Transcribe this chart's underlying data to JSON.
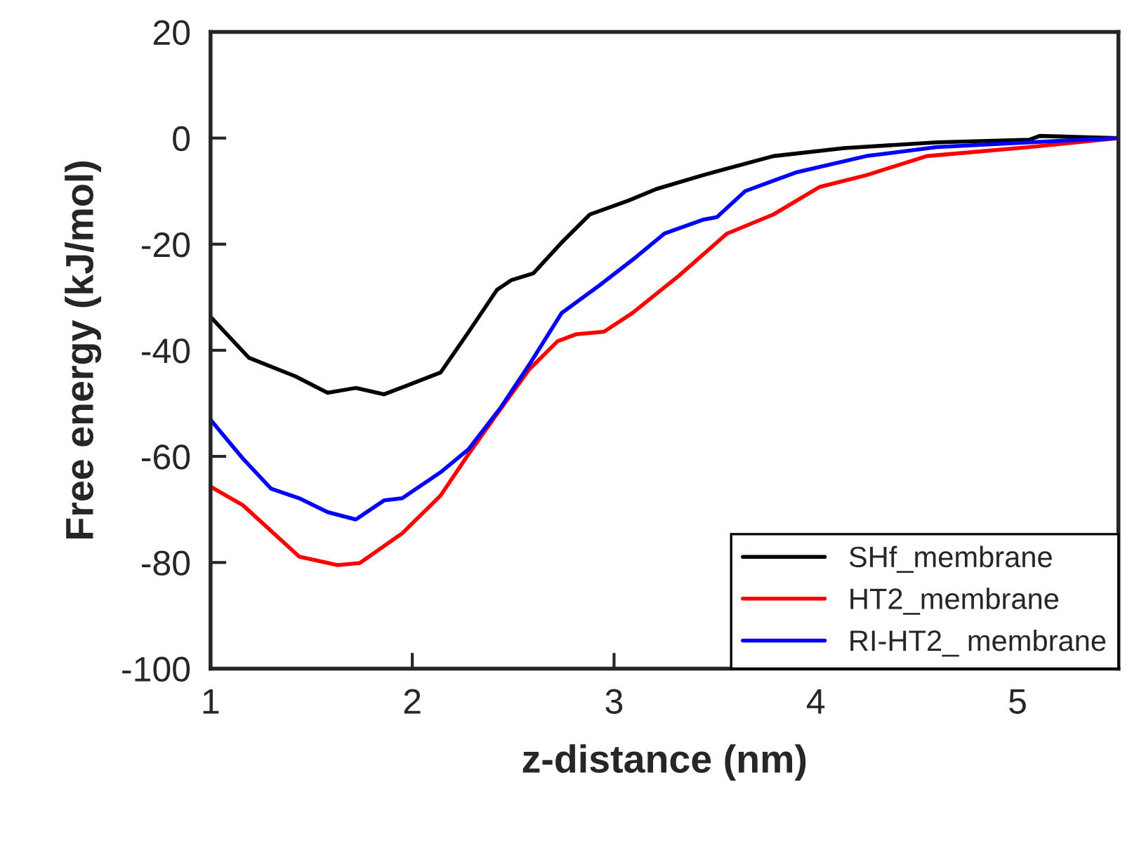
{
  "chart_data": {
    "type": "line",
    "xlabel": "z-distance (nm)",
    "ylabel": "Free energy (kJ/mol)",
    "xlim": [
      1,
      5.5
    ],
    "xticks": [
      1,
      2,
      3,
      4,
      5
    ],
    "ylim": [
      -100,
      20
    ],
    "yticks": [
      -100,
      -80,
      -60,
      -40,
      -20,
      0,
      20
    ],
    "grid": false,
    "legend": "bottom right",
    "marker": "none",
    "line_style": "solid",
    "series": [
      {
        "name": "SHf_membrane",
        "color": "#000000",
        "x": [
          1.0,
          1.19,
          1.42,
          1.58,
          1.72,
          1.86,
          1.97,
          2.14,
          2.28,
          2.42,
          2.49,
          2.6,
          2.74,
          2.88,
          3.07,
          3.21,
          3.44,
          3.79,
          4.14,
          4.6,
          5.06,
          5.11,
          5.5
        ],
        "values": [
          -33.7,
          -41.4,
          -44.9,
          -48.0,
          -47.1,
          -48.3,
          -46.7,
          -44.2,
          -36.5,
          -28.6,
          -26.8,
          -25.5,
          -19.7,
          -14.4,
          -11.8,
          -9.6,
          -7.0,
          -3.4,
          -1.9,
          -0.8,
          -0.3,
          0.4,
          0
        ]
      },
      {
        "name": "HT2_membrane",
        "color": "#ff0000",
        "x": [
          1.0,
          1.16,
          1.44,
          1.63,
          1.74,
          1.95,
          2.14,
          2.28,
          2.42,
          2.58,
          2.72,
          2.81,
          2.95,
          3.09,
          3.32,
          3.56,
          3.79,
          4.02,
          4.25,
          4.55,
          5.06,
          5.5
        ],
        "values": [
          -65.7,
          -69.2,
          -78.9,
          -80.5,
          -80.1,
          -74.5,
          -67.4,
          -59.5,
          -52.0,
          -43.6,
          -38.3,
          -37.0,
          -36.5,
          -33.0,
          -26.0,
          -18.0,
          -14.4,
          -9.2,
          -7.0,
          -3.4,
          -1.7,
          0
        ]
      },
      {
        "name": "RI-HT2_ membrane",
        "color": "#0000ff",
        "x": [
          1.0,
          1.16,
          1.3,
          1.44,
          1.58,
          1.72,
          1.86,
          1.95,
          2.14,
          2.28,
          2.44,
          2.58,
          2.74,
          2.93,
          3.11,
          3.25,
          3.44,
          3.51,
          3.65,
          3.9,
          4.25,
          4.6,
          5.06,
          5.5
        ],
        "values": [
          -53.1,
          -60.4,
          -66.1,
          -67.9,
          -70.5,
          -71.9,
          -68.3,
          -67.9,
          -63.0,
          -58.6,
          -50.7,
          -42.7,
          -33.0,
          -27.7,
          -22.4,
          -18.0,
          -15.4,
          -14.9,
          -10.0,
          -6.5,
          -3.4,
          -1.7,
          -0.8,
          0
        ]
      }
    ]
  }
}
